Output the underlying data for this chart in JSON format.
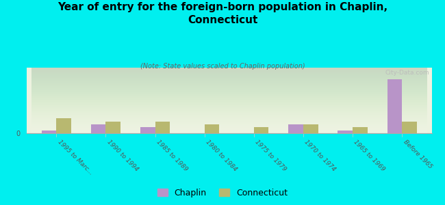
{
  "title": "Year of entry for the foreign-born population in Chaplin,\nConnecticut",
  "subtitle": "(Note: State values scaled to Chaplin population)",
  "categories": [
    "1995 to Marc...",
    "1990 to 1994",
    "1985 to 1989",
    "1980 to 1984",
    "1975 to 1979",
    "1970 to 1974",
    "1965 to 1969",
    "Before 1965"
  ],
  "chaplin_values": [
    1,
    3,
    2,
    0,
    0,
    3,
    1,
    18
  ],
  "connecticut_values": [
    5,
    4,
    4,
    3,
    2,
    3,
    2,
    4
  ],
  "chaplin_color": "#b894c8",
  "connecticut_color": "#b8b870",
  "background_color": "#00efef",
  "plot_bg_color": "#edf2e0",
  "watermark": "City-Data.com",
  "bar_width": 0.3,
  "ylim": [
    0,
    22
  ],
  "figsize": [
    6.5,
    3.0
  ],
  "dpi": 100
}
